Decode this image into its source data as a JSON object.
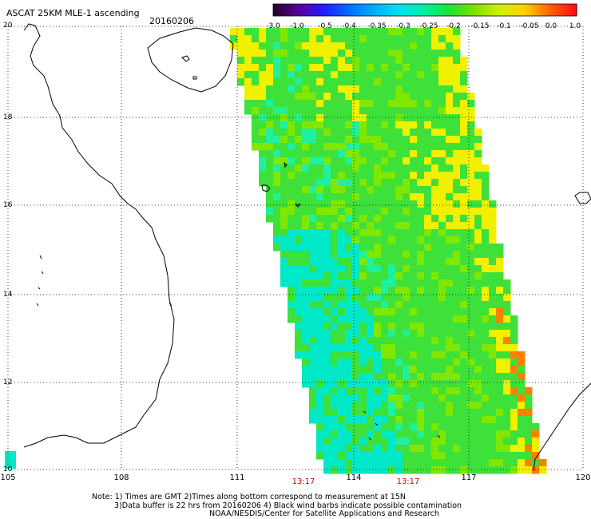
{
  "header": {
    "title": "ASCAT 25KM MLE-1 ascending",
    "date": "20160206"
  },
  "colorbar": {
    "labels": [
      "-3.0",
      "-1.0",
      "-0.5",
      "-0.4",
      "-0.35",
      "-0.3",
      "-0.25",
      "-0.2",
      "-0.15",
      "-0.1",
      "-0.05",
      "0.0",
      "1.0"
    ],
    "colors": [
      "#2a0030",
      "#5a00a0",
      "#2020ff",
      "#0070ff",
      "#00b0ff",
      "#00e0f0",
      "#00f0a0",
      "#20e030",
      "#80e000",
      "#d0f000",
      "#ffd000",
      "#ff6000",
      "#ff1010"
    ]
  },
  "axes": {
    "x_ticks": [
      "105",
      "108",
      "111",
      "114",
      "117",
      "120"
    ],
    "y_ticks": [
      "20",
      "18",
      "16",
      "14",
      "12",
      "10"
    ]
  },
  "times": [
    "13:17",
    "13:17"
  ],
  "footer": {
    "note1": "Note: 1) Times are GMT 2)Times along bottom correspond to measurement at 15N",
    "note2": "3)Data buffer is 22 hrs from 20160206 4) Black wind barbs indicate possible contamination",
    "credit": "NOAA/NESDIS/Center for Satellite Applications and Research"
  },
  "swath_colors": {
    "green": "#3ee03a",
    "lime": "#80e800",
    "cyan": "#00e8c8",
    "teal": "#20f0a0",
    "yellow": "#f0f000",
    "orange": "#ff8000"
  }
}
